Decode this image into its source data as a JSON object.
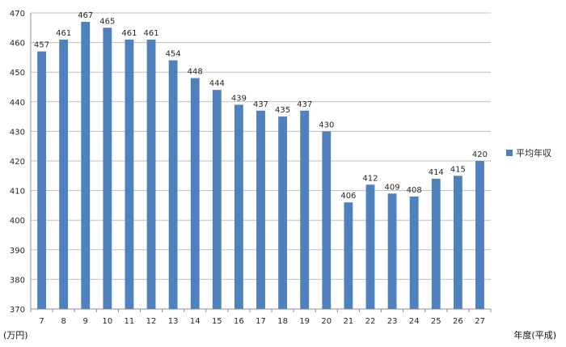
{
  "chart_data": {
    "type": "bar",
    "categories": [
      "7",
      "8",
      "9",
      "10",
      "11",
      "12",
      "13",
      "14",
      "15",
      "16",
      "17",
      "18",
      "19",
      "20",
      "21",
      "22",
      "23",
      "24",
      "25",
      "26",
      "27"
    ],
    "series": [
      {
        "name": "平均年収",
        "values": [
          457,
          461,
          467,
          465,
          461,
          461,
          454,
          448,
          444,
          439,
          437,
          435,
          437,
          430,
          406,
          412,
          409,
          408,
          414,
          415,
          420
        ],
        "color": "#4f81bd"
      }
    ],
    "y_ticks": [
      "370",
      "380",
      "390",
      "400",
      "410",
      "420",
      "430",
      "440",
      "450",
      "460",
      "470"
    ],
    "ylim": [
      370,
      470
    ],
    "ylabel": "(万円)",
    "xlabel": "年度(平成)",
    "legend_position": "right",
    "grid": true
  }
}
